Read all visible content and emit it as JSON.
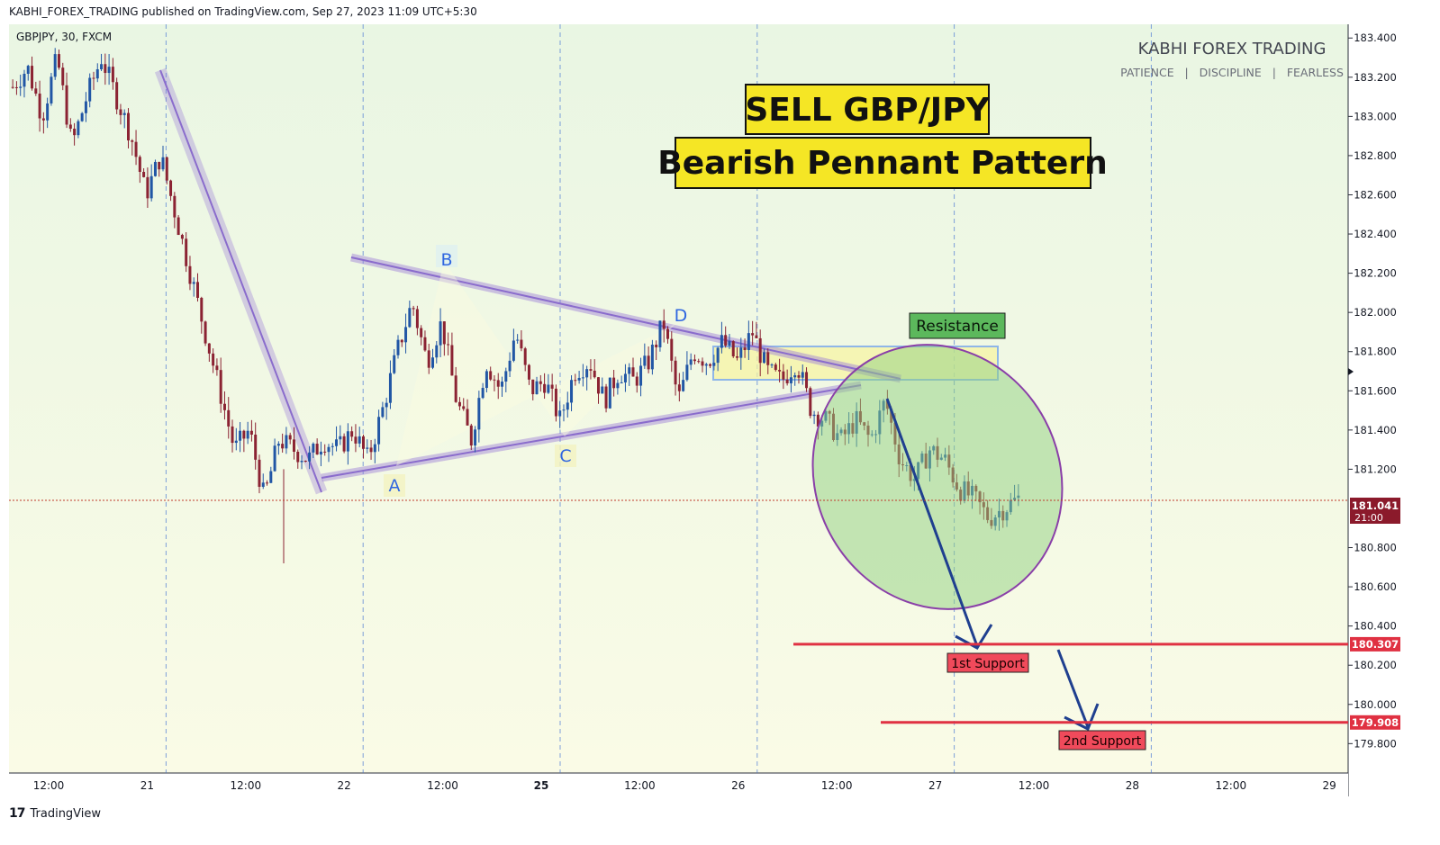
{
  "header": {
    "published": "KABHI_FOREX_TRADING published on TradingView.com, Sep 27, 2023 11:09 UTC+5:30"
  },
  "footer": {
    "logo": "17",
    "brand": "TradingView"
  },
  "chart_data": {
    "type": "candlestick",
    "symbol": "GBPJPY, 30, FXCM",
    "watermark_title": "KABHI FOREX TRADING",
    "watermark_subtitle": "PATIENCE   |   DISCIPLINE   |   FEARLESS",
    "title": "SELL GBP/JPY",
    "subtitle": "Bearish Pennant Pattern",
    "ylim": [
      179.65,
      183.47
    ],
    "y_ticks": [
      "183.400",
      "183.200",
      "183.000",
      "182.800",
      "182.600",
      "182.400",
      "182.200",
      "182.000",
      "181.800",
      "181.600",
      "181.400",
      "181.200",
      "180.800",
      "180.600",
      "180.400",
      "180.200",
      "180.000",
      "179.800"
    ],
    "x_ticks": [
      "12:00",
      "21",
      "12:00",
      "22",
      "12:00",
      "25",
      "12:00",
      "26",
      "12:00",
      "27",
      "12:00",
      "28",
      "12:00",
      "29"
    ],
    "bold_x_ticks": [
      "25"
    ],
    "last_price": {
      "value": "181.041",
      "time": "21:00"
    },
    "levels": [
      {
        "name": "1st Support",
        "value": 180.307,
        "label": "180.307"
      },
      {
        "name": "2nd Support",
        "value": 179.908,
        "label": "179.908"
      }
    ],
    "resistance": {
      "label": "Resistance",
      "from": 181.7,
      "to": 181.86
    },
    "points": [
      {
        "label": "A",
        "price": 181.22
      },
      {
        "label": "B",
        "price": 182.26
      },
      {
        "label": "C",
        "price": 181.39
      },
      {
        "label": "D",
        "price": 181.97
      }
    ],
    "price_path": [
      183.15,
      183.25,
      183.0,
      183.3,
      182.85,
      183.1,
      183.3,
      183.1,
      182.9,
      182.6,
      182.8,
      182.5,
      182.2,
      181.9,
      181.6,
      181.3,
      181.4,
      181.05,
      181.35,
      181.3,
      181.25,
      181.35,
      181.3,
      181.4,
      181.25,
      181.5,
      181.8,
      182.05,
      181.75,
      181.95,
      181.55,
      181.35,
      181.75,
      181.6,
      181.9,
      181.6,
      181.65,
      181.45,
      181.7,
      181.75,
      181.55,
      181.7,
      181.65,
      181.75,
      181.95,
      181.55,
      181.8,
      181.75,
      181.85,
      181.75,
      181.9,
      181.7,
      181.65,
      181.75,
      181.5,
      181.45,
      181.35,
      181.45,
      181.35,
      181.55,
      181.25,
      181.15,
      181.3,
      181.25,
      181.1,
      181.05,
      180.95,
      181.0,
      181.05
    ],
    "colors": {
      "up": "#2156a5",
      "down": "#8b2333",
      "support": "#e03142",
      "pennant": "#9b7cd6",
      "highlight": "#f5e625",
      "green_zone": "#9bd68f",
      "arrow": "#1f3f8f"
    }
  }
}
